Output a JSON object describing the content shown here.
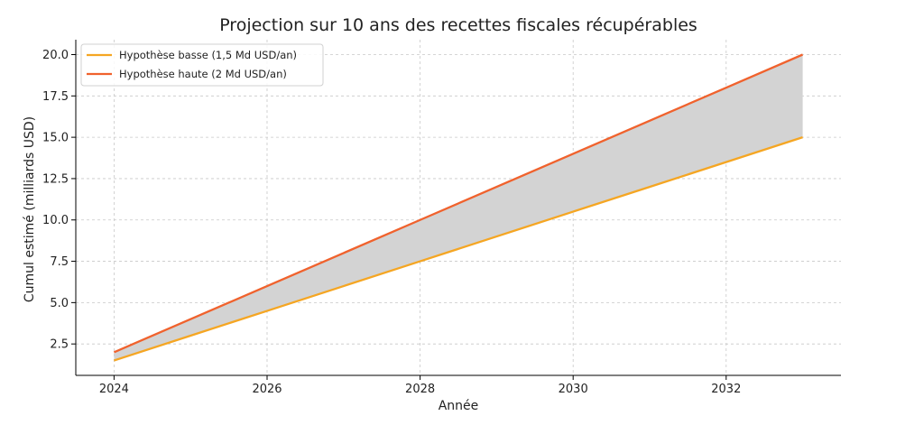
{
  "chart_data": {
    "type": "line",
    "title": "Projection sur 10 ans des recettes fiscales récupérables",
    "xlabel": "Année",
    "ylabel": "Cumul estimé (milliards USD)",
    "x": [
      2024,
      2025,
      2026,
      2027,
      2028,
      2029,
      2030,
      2031,
      2032,
      2033
    ],
    "xlim": [
      2023.5,
      2033.5
    ],
    "ylim": [
      0.6,
      20.9
    ],
    "x_ticks": [
      2024,
      2026,
      2028,
      2030,
      2032
    ],
    "y_ticks": [
      2.5,
      5.0,
      7.5,
      10.0,
      12.5,
      15.0,
      17.5,
      20.0
    ],
    "x_tick_labels": [
      "2024",
      "2026",
      "2028",
      "2030",
      "2032"
    ],
    "y_tick_labels": [
      "2.5",
      "5.0",
      "7.5",
      "10.0",
      "12.5",
      "15.0",
      "17.5",
      "20.0"
    ],
    "grid": true,
    "legend_position": "top-left",
    "series": [
      {
        "name": "Hypothèse basse (1,5 Md USD/an)",
        "color": "#F5A623",
        "values": [
          1.5,
          3.0,
          4.5,
          6.0,
          7.5,
          9.0,
          10.5,
          12.0,
          13.5,
          15.0
        ]
      },
      {
        "name": "Hypothèse haute (2 Md USD/an)",
        "color": "#F0622D",
        "values": [
          2.0,
          4.0,
          6.0,
          8.0,
          10.0,
          12.0,
          14.0,
          16.0,
          18.0,
          20.0
        ]
      }
    ],
    "band": {
      "between": [
        0,
        1
      ],
      "color": "#D3D3D3"
    }
  }
}
